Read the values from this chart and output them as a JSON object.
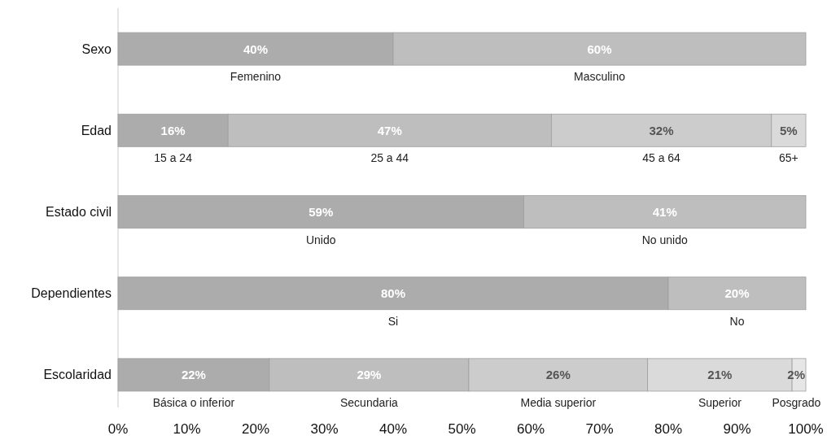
{
  "chart_data": {
    "type": "bar",
    "orientation": "horizontal",
    "stacked": true,
    "categories": [
      "Sexo",
      "Edad",
      "Estado civil",
      "Dependientes",
      "Escolaridad"
    ],
    "series": [
      {
        "color": "#acacac",
        "values": [
          40,
          16,
          59,
          80,
          22
        ],
        "value_labels": [
          "40%",
          "16%",
          "59%",
          "80%",
          "22%"
        ]
      },
      {
        "color": "#bebebe",
        "values": [
          60,
          47,
          41,
          20,
          29
        ],
        "value_labels": [
          "60%",
          "47%",
          "41%",
          "20%",
          "29%"
        ]
      },
      {
        "color": "#cccccc",
        "values": [
          null,
          32,
          null,
          null,
          26
        ],
        "value_labels": [
          null,
          "32%",
          null,
          null,
          "26%"
        ]
      },
      {
        "color": "#dadada",
        "values": [
          null,
          5,
          null,
          null,
          21
        ],
        "value_labels": [
          null,
          "5%",
          null,
          null,
          "21%"
        ]
      },
      {
        "color": "#e6e6e6",
        "values": [
          null,
          null,
          null,
          null,
          2
        ],
        "value_labels": [
          null,
          null,
          null,
          null,
          "2%"
        ]
      }
    ],
    "xlim": [
      0,
      100
    ],
    "xticks": [
      {
        "value": 0,
        "label": "0%"
      },
      {
        "value": 10,
        "label": "10%"
      },
      {
        "value": 20,
        "label": "20%"
      },
      {
        "value": 30,
        "label": "30%"
      },
      {
        "value": 40,
        "label": "40%"
      },
      {
        "value": 50,
        "label": "50%"
      },
      {
        "value": 60,
        "label": "60%"
      },
      {
        "value": 70,
        "label": "70%"
      },
      {
        "value": 80,
        "label": "80%"
      },
      {
        "value": 90,
        "label": "90%"
      },
      {
        "value": 100,
        "label": "100%"
      }
    ],
    "annotations": [
      "Femenino",
      "Masculino",
      "15 a 24",
      "25 a 44",
      "45 a 64",
      "65+",
      "Unido",
      "No unido",
      "Si",
      "No",
      "Básica o inferior",
      "Secundaria",
      "Media superior",
      "Superior",
      "Posgrado"
    ]
  }
}
